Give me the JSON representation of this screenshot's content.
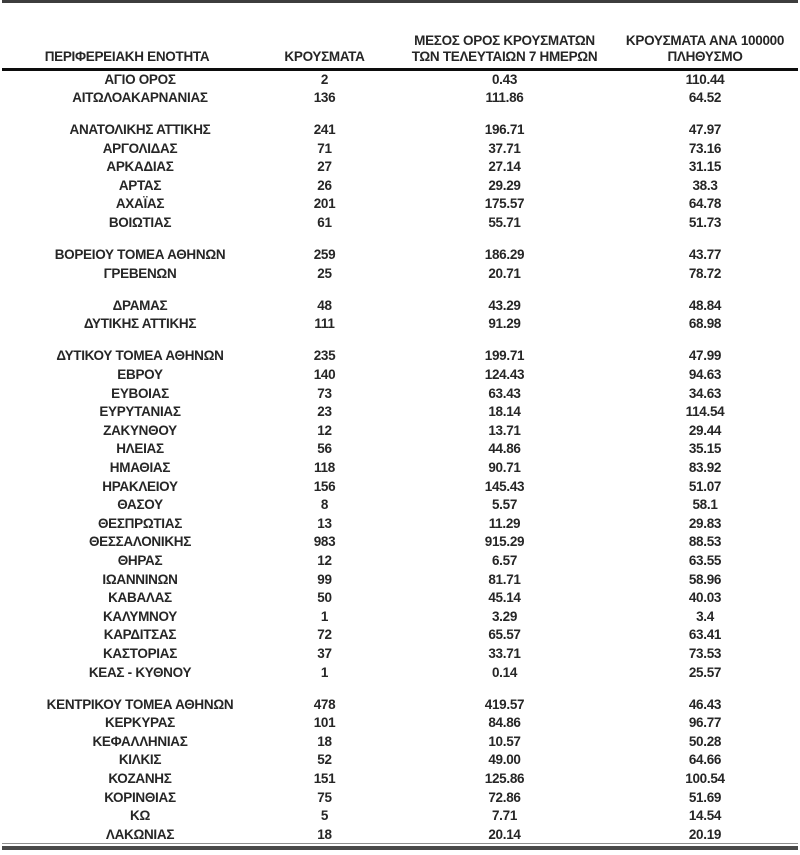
{
  "table": {
    "headers": [
      {
        "id": "region",
        "lines": [
          "ΠΕΡΙΦΕΡΕΙΑΚΗ ΕΝΟΤΗΤΑ"
        ]
      },
      {
        "id": "cases",
        "lines": [
          "ΚΡΟΥΣΜΑΤΑ"
        ]
      },
      {
        "id": "avg7",
        "lines": [
          "ΜΕΣΟΣ ΟΡΟΣ ΚΡΟΥΣΜΑΤΩΝ",
          "ΤΩΝ ΤΕΛΕΥΤΑΙΩΝ 7 ΗΜΕΡΩΝ"
        ]
      },
      {
        "id": "per100k",
        "lines": [
          "ΚΡΟΥΣΜΑΤΑ ΑΝΑ 100000",
          "ΠΛΗΘΥΣΜΟ"
        ]
      }
    ],
    "groups": [
      {
        "rows": [
          [
            "ΑΓΙΟ ΟΡΟΣ",
            "2",
            "0.43",
            "110.44"
          ],
          [
            "ΑΙΤΩΛΟΑΚΑΡΝΑΝΙΑΣ",
            "136",
            "111.86",
            "64.52"
          ]
        ]
      },
      {
        "rows": [
          [
            "ΑΝΑΤΟΛΙΚΗΣ ΑΤΤΙΚΗΣ",
            "241",
            "196.71",
            "47.97"
          ],
          [
            "ΑΡΓΟΛΙΔΑΣ",
            "71",
            "37.71",
            "73.16"
          ],
          [
            "ΑΡΚΑΔΙΑΣ",
            "27",
            "27.14",
            "31.15"
          ],
          [
            "ΑΡΤΑΣ",
            "26",
            "29.29",
            "38.3"
          ],
          [
            "ΑΧΑΪΑΣ",
            "201",
            "175.57",
            "64.78"
          ],
          [
            "ΒΟΙΩΤΙΑΣ",
            "61",
            "55.71",
            "51.73"
          ]
        ]
      },
      {
        "rows": [
          [
            "ΒΟΡΕΙΟΥ ΤΟΜΕΑ ΑΘΗΝΩΝ",
            "259",
            "186.29",
            "43.77"
          ],
          [
            "ΓΡΕΒΕΝΩΝ",
            "25",
            "20.71",
            "78.72"
          ]
        ]
      },
      {
        "rows": [
          [
            "ΔΡΑΜΑΣ",
            "48",
            "43.29",
            "48.84"
          ],
          [
            "ΔΥΤΙΚΗΣ ΑΤΤΙΚΗΣ",
            "111",
            "91.29",
            "68.98"
          ]
        ]
      },
      {
        "rows": [
          [
            "ΔΥΤΙΚΟΥ ΤΟΜΕΑ ΑΘΗΝΩΝ",
            "235",
            "199.71",
            "47.99"
          ],
          [
            "ΕΒΡΟΥ",
            "140",
            "124.43",
            "94.63"
          ],
          [
            "ΕΥΒΟΙΑΣ",
            "73",
            "63.43",
            "34.63"
          ],
          [
            "ΕΥΡΥΤΑΝΙΑΣ",
            "23",
            "18.14",
            "114.54"
          ],
          [
            "ΖΑΚΥΝΘΟΥ",
            "12",
            "13.71",
            "29.44"
          ],
          [
            "ΗΛΕΙΑΣ",
            "56",
            "44.86",
            "35.15"
          ],
          [
            "ΗΜΑΘΙΑΣ",
            "118",
            "90.71",
            "83.92"
          ],
          [
            "ΗΡΑΚΛΕΙΟΥ",
            "156",
            "145.43",
            "51.07"
          ],
          [
            "ΘΑΣΟΥ",
            "8",
            "5.57",
            "58.1"
          ],
          [
            "ΘΕΣΠΡΩΤΙΑΣ",
            "13",
            "11.29",
            "29.83"
          ],
          [
            "ΘΕΣΣΑΛΟΝΙΚΗΣ",
            "983",
            "915.29",
            "88.53"
          ],
          [
            "ΘΗΡΑΣ",
            "12",
            "6.57",
            "63.55"
          ],
          [
            "ΙΩΑΝΝΙΝΩΝ",
            "99",
            "81.71",
            "58.96"
          ],
          [
            "ΚΑΒΑΛΑΣ",
            "50",
            "45.14",
            "40.03"
          ],
          [
            "ΚΑΛΥΜΝΟΥ",
            "1",
            "3.29",
            "3.4"
          ],
          [
            "ΚΑΡΔΙΤΣΑΣ",
            "72",
            "65.57",
            "63.41"
          ],
          [
            "ΚΑΣΤΟΡΙΑΣ",
            "37",
            "33.71",
            "73.53"
          ],
          [
            "ΚΕΑΣ - ΚΥΘΝΟΥ",
            "1",
            "0.14",
            "25.57"
          ]
        ]
      },
      {
        "rows": [
          [
            "ΚΕΝΤΡΙΚΟΥ ΤΟΜΕΑ ΑΘΗΝΩΝ",
            "478",
            "419.57",
            "46.43"
          ],
          [
            "ΚΕΡΚΥΡΑΣ",
            "101",
            "84.86",
            "96.77"
          ],
          [
            "ΚΕΦΑΛΛΗΝΙΑΣ",
            "18",
            "10.57",
            "50.28"
          ],
          [
            "ΚΙΛΚΙΣ",
            "52",
            "49.00",
            "64.66"
          ],
          [
            "ΚΟΖΑΝΗΣ",
            "151",
            "125.86",
            "100.54"
          ],
          [
            "ΚΟΡΙΝΘΙΑΣ",
            "75",
            "72.86",
            "51.69"
          ],
          [
            "ΚΩ",
            "5",
            "7.71",
            "14.54"
          ],
          [
            "ΛΑΚΩΝΙΑΣ",
            "18",
            "20.14",
            "20.19"
          ]
        ]
      }
    ]
  },
  "colors": {
    "text": "#262626",
    "top_border": "#3d3d3d",
    "header_rule": "#0d0d0d",
    "bottom_thin_line": "#8f8f8f",
    "bottom_bar": "#4a4a4a"
  }
}
